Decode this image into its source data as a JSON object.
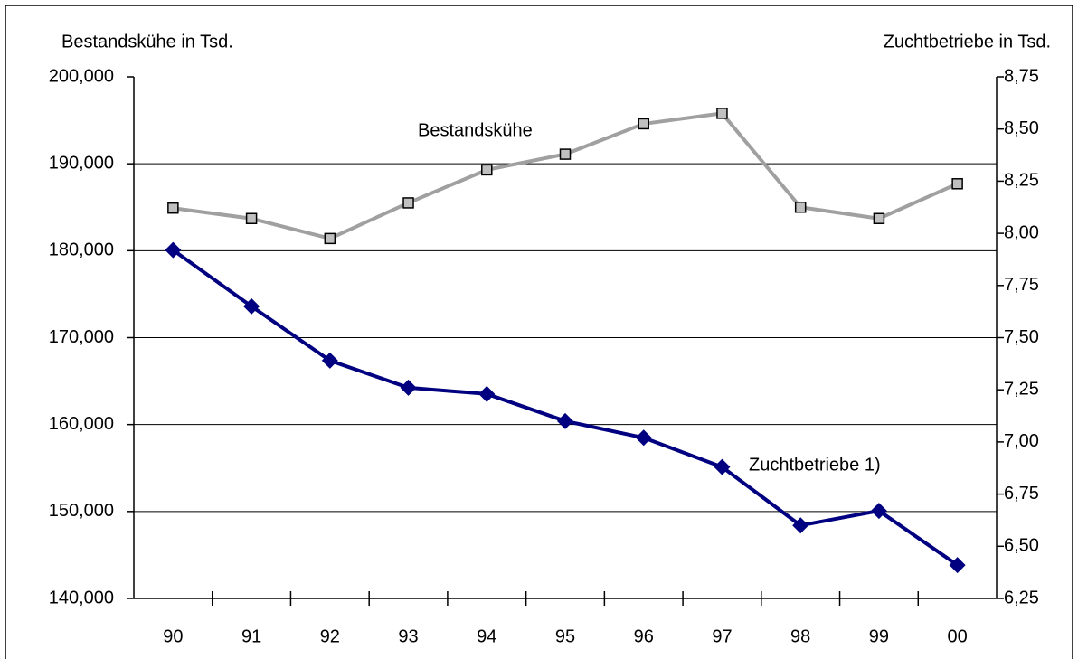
{
  "chart_data": {
    "type": "line",
    "y_label": "Bestandskühe in Tsd.",
    "y2_label": "Zuchtbetriebe in Tsd.",
    "categories": [
      "90",
      "91",
      "92",
      "93",
      "94",
      "95",
      "96",
      "97",
      "98",
      "99",
      "00"
    ],
    "series": [
      {
        "name": "Bestandskühe",
        "color": "#a0a0a0",
        "marker_color": "#c0c0c0",
        "marker": "square",
        "values": [
          184900,
          183700,
          181400,
          185500,
          189300,
          191100,
          194600,
          195800,
          185000,
          183700,
          187700
        ]
      },
      {
        "name": "Zuchtbetriebe 1)",
        "color": "#000080",
        "marker_color": "#000080",
        "marker": "diamond",
        "axis": "y2",
        "values": [
          7.92,
          7.65,
          7.39,
          7.26,
          7.23,
          7.1,
          7.02,
          6.88,
          6.6,
          6.67,
          6.41
        ]
      }
    ],
    "ylim": [
      140000,
      200000
    ],
    "yticks": [
      {
        "value": 140000,
        "label": "140,000"
      },
      {
        "value": 150000,
        "label": "150,000"
      },
      {
        "value": 160000,
        "label": "160,000"
      },
      {
        "value": 170000,
        "label": "170,000"
      },
      {
        "value": 180000,
        "label": "180,000"
      },
      {
        "value": 190000,
        "label": "190,000"
      },
      {
        "value": 200000,
        "label": "200,000"
      }
    ],
    "y2lim": [
      6.25,
      8.75
    ],
    "y2ticks": [
      {
        "value": 6.25,
        "label": "6,25"
      },
      {
        "value": 6.5,
        "label": "6,50"
      },
      {
        "value": 6.75,
        "label": "6,75"
      },
      {
        "value": 7.0,
        "label": "7,00"
      },
      {
        "value": 7.25,
        "label": "7,25"
      },
      {
        "value": 7.5,
        "label": "7,50"
      },
      {
        "value": 7.75,
        "label": "7,75"
      },
      {
        "value": 8.0,
        "label": "8,00"
      },
      {
        "value": 8.25,
        "label": "8,25"
      },
      {
        "value": 8.5,
        "label": "8,50"
      },
      {
        "value": 8.75,
        "label": "8,75"
      }
    ],
    "grid": true
  }
}
